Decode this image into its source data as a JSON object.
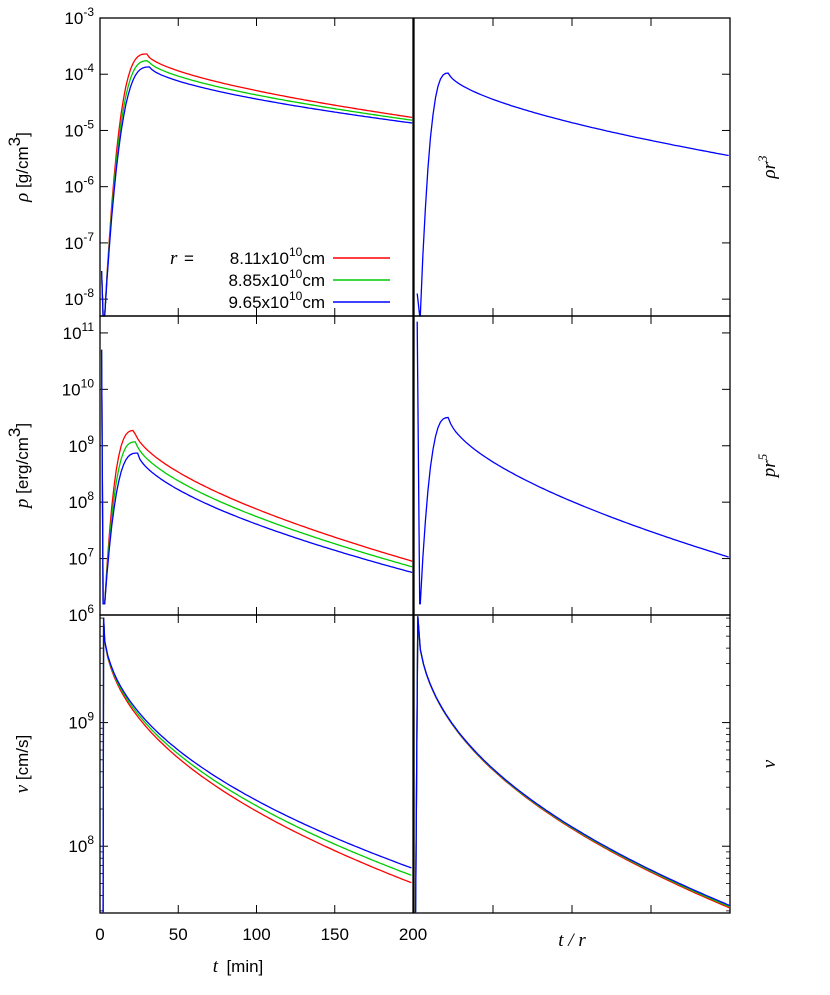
{
  "chart_data": {
    "type": "line",
    "layout": "3x2 panels, shared x axes, log-scale y axes",
    "legend": {
      "position": "top-left panel, lower right",
      "prefix": "r =",
      "entries": [
        {
          "mantissa": "8.11x10",
          "exp": "10",
          "unit": "cm",
          "color": "#ff0000"
        },
        {
          "mantissa": "8.85x10",
          "exp": "10",
          "unit": "cm",
          "color": "#00cc00"
        },
        {
          "mantissa": "9.65x10",
          "exp": "10",
          "unit": "cm",
          "color": "#0000ff"
        }
      ]
    },
    "left_x": {
      "label_var": "t",
      "label_unit": "[min]",
      "range": [
        0,
        200
      ],
      "ticks": [
        "0",
        "50",
        "100",
        "150",
        "200"
      ]
    },
    "right_x": {
      "label": "t / r",
      "ticks": []
    },
    "rows": [
      {
        "name": "density",
        "left_ylabel": {
          "sym": "ρ",
          "unit": "[g/cm",
          "exp": "3",
          "close": "]"
        },
        "right_ylabel": {
          "base": "ρr",
          "exp": "3"
        },
        "log_range": [
          -8.3,
          -3
        ],
        "ticks": [
          {
            "base": "10",
            "exp": "-3",
            "v": -3
          },
          {
            "base": "10",
            "exp": "-4",
            "v": -4
          },
          {
            "base": "10",
            "exp": "-5",
            "v": -5
          },
          {
            "base": "10",
            "exp": "-6",
            "v": -6
          },
          {
            "base": "10",
            "exp": "-7",
            "v": -7
          },
          {
            "base": "10",
            "exp": "-8",
            "v": -8
          }
        ],
        "left_series": [
          {
            "name": "8.11x10^10 cm",
            "color": "#ff0000",
            "peak_t": 30,
            "peak": -3.64,
            "end": -4.77
          },
          {
            "name": "8.85x10^10 cm",
            "color": "#00cc00",
            "peak_t": 31,
            "peak": -3.76,
            "end": -4.82
          },
          {
            "name": "9.65x10^10 cm",
            "color": "#0000ff",
            "peak_t": 32,
            "peak": -3.87,
            "end": -4.87
          }
        ],
        "right_series": [
          {
            "color": "#0000ff",
            "peak": -3.98,
            "end": -5.45
          }
        ]
      },
      {
        "name": "pressure",
        "left_ylabel": {
          "sym": "p",
          "unit": "[erg/cm",
          "exp": "3",
          "close": "]"
        },
        "right_ylabel": {
          "base": "pr",
          "exp": "5"
        },
        "log_range": [
          6,
          11.3
        ],
        "ticks": [
          {
            "base": "10",
            "exp": "11",
            "v": 11
          },
          {
            "base": "10",
            "exp": "10",
            "v": 10
          },
          {
            "base": "10",
            "exp": "9",
            "v": 9
          },
          {
            "base": "10",
            "exp": "8",
            "v": 8
          },
          {
            "base": "10",
            "exp": "7",
            "v": 7
          },
          {
            "base": "10",
            "exp": "6",
            "v": 6
          }
        ],
        "left_series": [
          {
            "name": "8.11x10^10 cm",
            "color": "#ff0000",
            "peak_t": 22,
            "peak": 9.27,
            "end": 6.95
          },
          {
            "name": "8.85x10^10 cm",
            "color": "#00cc00",
            "peak_t": 23,
            "peak": 9.07,
            "end": 6.85
          },
          {
            "name": "9.65x10^10 cm",
            "color": "#0000ff",
            "peak_t": 24,
            "peak": 8.87,
            "end": 6.75
          }
        ],
        "right_series": [
          {
            "color": "#0000ff",
            "peak": 9.5,
            "end": 7.02
          }
        ]
      },
      {
        "name": "velocity",
        "left_ylabel": {
          "sym": "v",
          "unit": "[cm/s]",
          "exp": "",
          "close": ""
        },
        "right_ylabel": {
          "base": "v",
          "exp": ""
        },
        "log_range": [
          7.46,
          9.87
        ],
        "ticks": [
          {
            "base": "10",
            "exp": "9",
            "v": 9
          },
          {
            "base": "10",
            "exp": "8",
            "v": 8
          }
        ],
        "left_series": [
          {
            "name": "8.11x10^10 cm",
            "color": "#ff0000",
            "start": 9.85,
            "end": 7.7
          },
          {
            "name": "8.85x10^10 cm",
            "color": "#00cc00",
            "start": 9.85,
            "end": 7.76
          },
          {
            "name": "9.65x10^10 cm",
            "color": "#0000ff",
            "start": 9.85,
            "end": 7.82
          }
        ],
        "right_series": [
          {
            "color": "#ff0000",
            "start": 9.86,
            "end": 7.5
          },
          {
            "color": "#00cc00",
            "start": 9.86,
            "end": 7.51
          },
          {
            "color": "#0000ff",
            "start": 9.86,
            "end": 7.52
          }
        ]
      }
    ]
  }
}
